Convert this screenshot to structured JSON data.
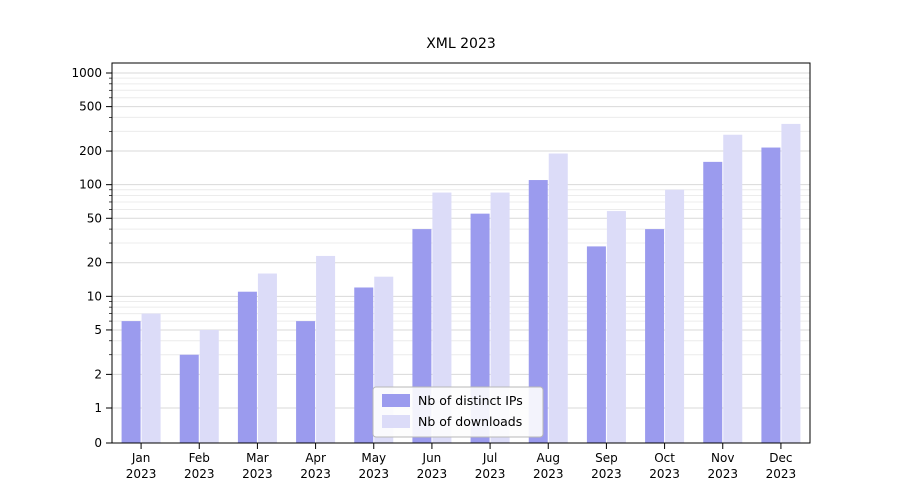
{
  "chart_data": {
    "type": "bar",
    "title": "XML 2023",
    "yscale": "symlog",
    "ylim": [
      0,
      1000
    ],
    "grid": true,
    "legend_position": "lower center",
    "yticks": [
      0,
      1,
      2,
      5,
      10,
      20,
      50,
      100,
      200,
      500,
      1000
    ],
    "categories": [
      "Jan",
      "Feb",
      "Mar",
      "Apr",
      "May",
      "Jun",
      "Jul",
      "Aug",
      "Sep",
      "Oct",
      "Nov",
      "Dec"
    ],
    "year_label": "2023",
    "series": [
      {
        "name": "Nb of distinct IPs",
        "color": "#9b9bee",
        "values": [
          6,
          3,
          11,
          6,
          12,
          40,
          55,
          110,
          28,
          40,
          160,
          215
        ]
      },
      {
        "name": "Nb of downloads",
        "color": "#dcdcf8",
        "values": [
          7,
          5,
          16,
          23,
          15,
          85,
          85,
          190,
          58,
          90,
          280,
          350
        ]
      }
    ],
    "colors": {
      "grid_major": "#d9d9d9",
      "grid_minor": "#ececec",
      "axis": "#000000",
      "legend_border": "#b8b8b8",
      "legend_bg": "#fdfdfd"
    }
  }
}
